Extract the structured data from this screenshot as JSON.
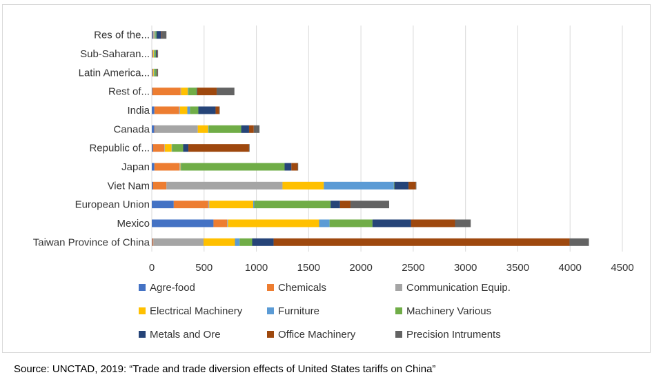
{
  "chart_data": {
    "type": "bar",
    "orientation": "horizontal",
    "stacked": true,
    "categories": [
      "Taiwan Province of China",
      "Mexico",
      "European Union",
      "Viet Nam",
      "Japan",
      "Republic of...",
      "Canada",
      "India",
      "Rest of...",
      "Latin America...",
      "Sub-Saharan...",
      "Res of the..."
    ],
    "series": [
      {
        "name": "Agre-food",
        "color": "#4472C4",
        "values": [
          5,
          590,
          210,
          10,
          25,
          10,
          25,
          25,
          5,
          5,
          5,
          10
        ]
      },
      {
        "name": "Chemicals",
        "color": "#ED7D31",
        "values": [
          10,
          130,
          330,
          130,
          240,
          110,
          5,
          235,
          270,
          5,
          5,
          5
        ]
      },
      {
        "name": "Communication Equip.",
        "color": "#A5A5A5",
        "values": [
          480,
          10,
          10,
          1110,
          5,
          5,
          410,
          10,
          5,
          5,
          5,
          5
        ]
      },
      {
        "name": "Electrical Machinery",
        "color": "#FFC000",
        "values": [
          300,
          870,
          420,
          395,
          5,
          65,
          100,
          70,
          65,
          5,
          5,
          5
        ]
      },
      {
        "name": "Furniture",
        "color": "#5B9BD5",
        "values": [
          45,
          100,
          10,
          670,
          5,
          5,
          5,
          25,
          5,
          5,
          5,
          10
        ]
      },
      {
        "name": "Machinery Various",
        "color": "#70AD47",
        "values": [
          120,
          410,
          730,
          5,
          990,
          105,
          310,
          80,
          80,
          20,
          15,
          10
        ]
      },
      {
        "name": "Metals and Ore",
        "color": "#264478",
        "values": [
          205,
          370,
          90,
          135,
          65,
          50,
          75,
          165,
          5,
          5,
          10,
          45
        ]
      },
      {
        "name": "Office Machinery",
        "color": "#9E480E",
        "values": [
          2830,
          420,
          100,
          70,
          60,
          580,
          45,
          35,
          185,
          5,
          5,
          5
        ]
      },
      {
        "name": "Precision Intruments",
        "color": "#636363",
        "values": [
          185,
          150,
          370,
          5,
          5,
          5,
          55,
          5,
          170,
          5,
          5,
          45
        ]
      }
    ],
    "xlim": [
      0,
      4500
    ],
    "xticks": [
      0,
      500,
      1000,
      1500,
      2000,
      2500,
      3000,
      3500,
      4000,
      4500
    ],
    "grid": true,
    "legend_position": "bottom",
    "title": "",
    "xlabel": "",
    "ylabel": ""
  },
  "source_note": "Source: UNCTAD, 2019: “Trade and trade diversion effects of United States tariffs on China”"
}
